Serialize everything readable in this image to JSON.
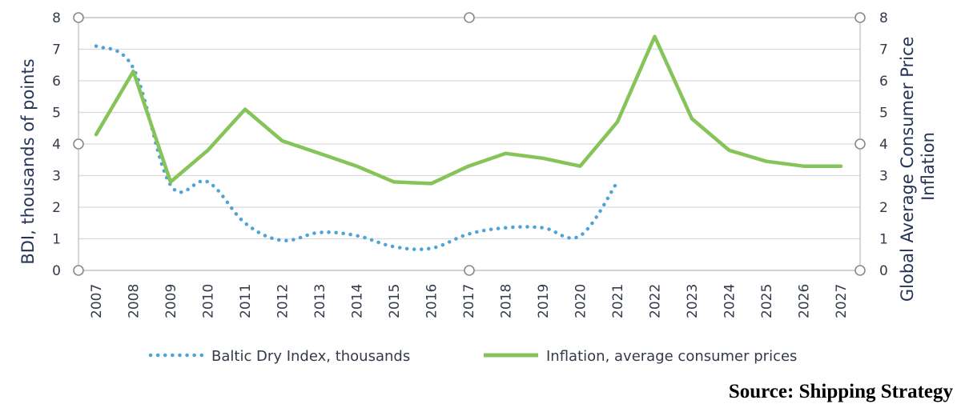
{
  "chart_data": {
    "type": "line",
    "x": [
      "2007",
      "2008",
      "2009",
      "2010",
      "2011",
      "2012",
      "2013",
      "2014",
      "2015",
      "2016",
      "2017",
      "2018",
      "2019",
      "2020",
      "2021",
      "2022",
      "2023",
      "2024",
      "2025",
      "2026",
      "2027"
    ],
    "y_left_label": "BDI, thousands of points",
    "y_right_label_lines": [
      "Global Average Consumer Price",
      "Inflation"
    ],
    "y_left_ticks": [
      "0",
      "1",
      "2",
      "3",
      "4",
      "5",
      "6",
      "7",
      "8"
    ],
    "y_right_ticks": [
      "0",
      "1",
      "2",
      "3",
      "4",
      "5",
      "6",
      "7",
      "8"
    ],
    "ylim": [
      0,
      8
    ],
    "grid": true,
    "legend_position": "bottom",
    "series": [
      {
        "name": "Baltic Dry Index, thousands",
        "axis": "left",
        "style": "dotted",
        "color": "#4ea3d8",
        "values": [
          7.1,
          6.4,
          2.7,
          2.8,
          1.5,
          0.95,
          1.2,
          1.1,
          0.75,
          0.7,
          1.15,
          1.35,
          1.35,
          1.1,
          2.8,
          null,
          null,
          null,
          null,
          null,
          null
        ]
      },
      {
        "name": "Inflation, average consumer prices",
        "axis": "right",
        "style": "solid",
        "color": "#86c45a",
        "values": [
          4.3,
          6.3,
          2.8,
          3.8,
          5.1,
          4.1,
          3.7,
          3.3,
          2.8,
          2.75,
          3.3,
          3.7,
          3.55,
          3.3,
          4.7,
          7.4,
          4.8,
          3.8,
          3.45,
          3.3,
          3.3
        ]
      }
    ]
  },
  "source": "Source: Shipping Strategy"
}
